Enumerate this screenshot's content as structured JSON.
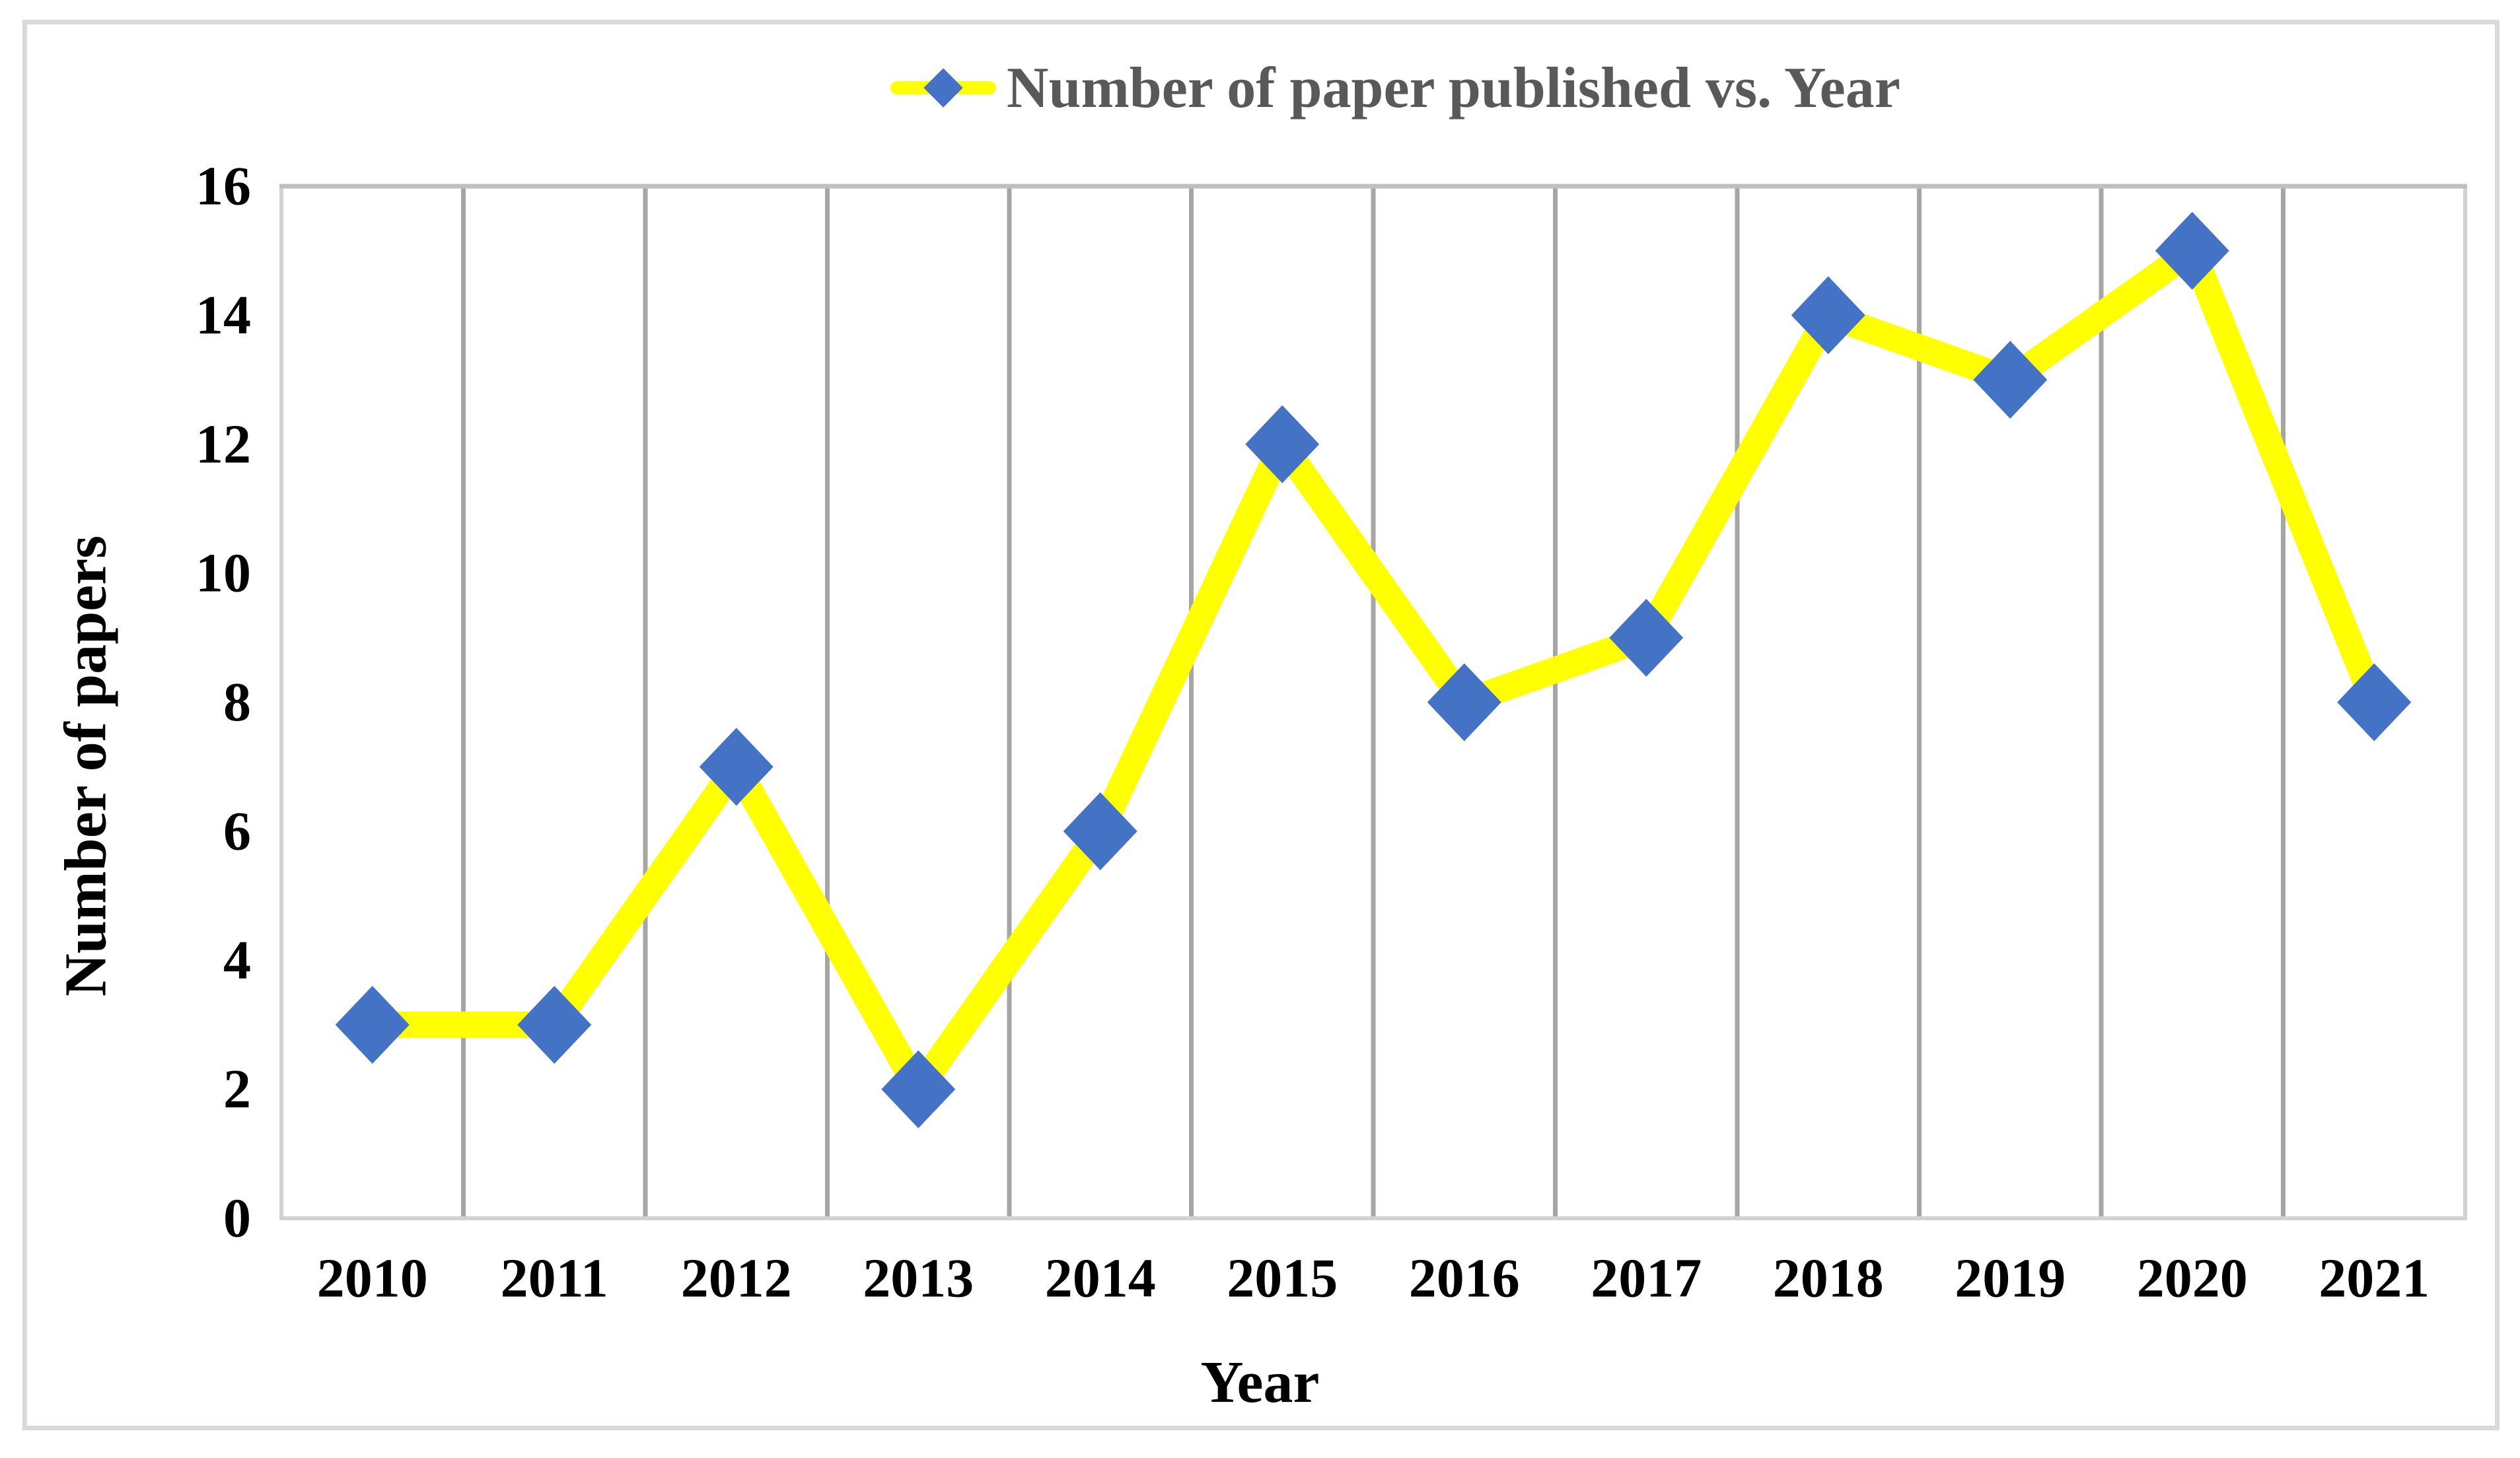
{
  "chart_data": {
    "type": "line",
    "categories": [
      "2010",
      "2011",
      "2012",
      "2013",
      "2014",
      "2015",
      "2016",
      "2017",
      "2018",
      "2019",
      "2020",
      "2021"
    ],
    "series": [
      {
        "name": "Number of paper published vs. Year",
        "values": [
          3,
          3,
          7,
          2,
          6,
          12,
          8,
          9,
          14,
          13,
          15,
          8
        ]
      }
    ],
    "xlabel": "Year",
    "ylabel": "Number of papers",
    "ylim": [
      0,
      16
    ],
    "y_ticks": [
      0,
      2,
      4,
      6,
      8,
      10,
      12,
      14,
      16
    ],
    "grid": "vertical-category-gridlines",
    "legend_position": "top-center",
    "marker": "diamond"
  },
  "colors": {
    "background": "#FFFFFF",
    "canvas_border": "#D9D9D9",
    "plot_border": "#D2D2D2",
    "plot_top_border": "#BFBFBF",
    "gridline": "#A6A6A6",
    "tick_text": "#000000",
    "axis_title_text": "#000000",
    "legend_text": "#595959",
    "series_line": "#FFFF00",
    "marker_fill": "#4472C4"
  }
}
